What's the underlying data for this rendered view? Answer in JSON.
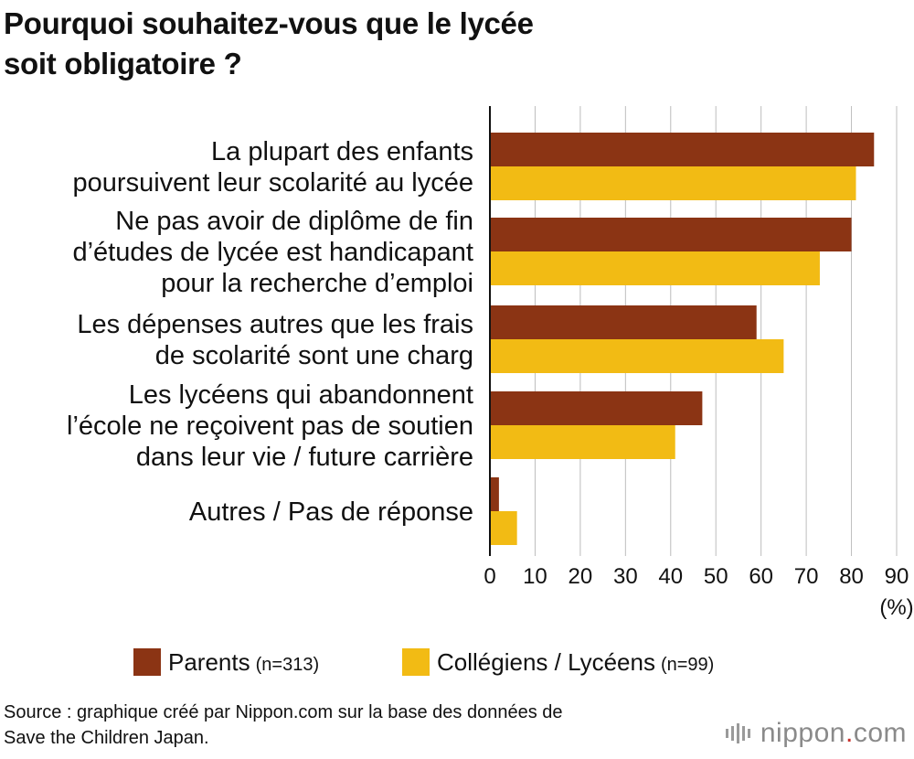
{
  "title": {
    "line1": "Pourquoi souhaitez-vous que le lycée",
    "line2": "soit obligatoire ?"
  },
  "colors": {
    "parents": "#8b3414",
    "students": "#f2bb14",
    "grid": "#bdbdbd",
    "axis": "#111111"
  },
  "chart_data": {
    "type": "bar",
    "orientation": "horizontal",
    "categories": [
      [
        "La plupart des enfants",
        "poursuivent leur scolarité au lycée"
      ],
      [
        "Ne pas avoir de diplôme de fin",
        "d’études de lycée est handicapant",
        "pour la recherche d’emploi"
      ],
      [
        "Les dépenses autres que les frais",
        "de scolarité sont une charg"
      ],
      [
        "Les lycéens qui abandonnent",
        "l’école ne reçoivent pas de soutien",
        "dans leur vie / future carrière"
      ],
      [
        "Autres / Pas de réponse"
      ]
    ],
    "series": [
      {
        "name": "Parents",
        "n": "(n=313)",
        "color": "#8b3414",
        "values": [
          85,
          80,
          59,
          47,
          2
        ]
      },
      {
        "name": "Collégiens / Lycéens",
        "n": "(n=99)",
        "color": "#f2bb14",
        "values": [
          81,
          73,
          65,
          41,
          6
        ]
      }
    ],
    "xlim": [
      0,
      90
    ],
    "xticks": [
      0,
      10,
      20,
      30,
      40,
      50,
      60,
      70,
      80,
      90
    ],
    "xlabel": "(%)",
    "grid": true,
    "legend_position": "bottom"
  },
  "legend": {
    "parents_label": "Parents",
    "parents_n": "(n=313)",
    "students_label": "Collégiens / Lycéens",
    "students_n": "(n=99)"
  },
  "source": {
    "line1": "Source : graphique créé par Nippon.com sur la base des données de",
    "line2": "Save the Children Japan."
  },
  "logo": {
    "name": "nippon",
    "dot": ".",
    "suffix": "com"
  }
}
